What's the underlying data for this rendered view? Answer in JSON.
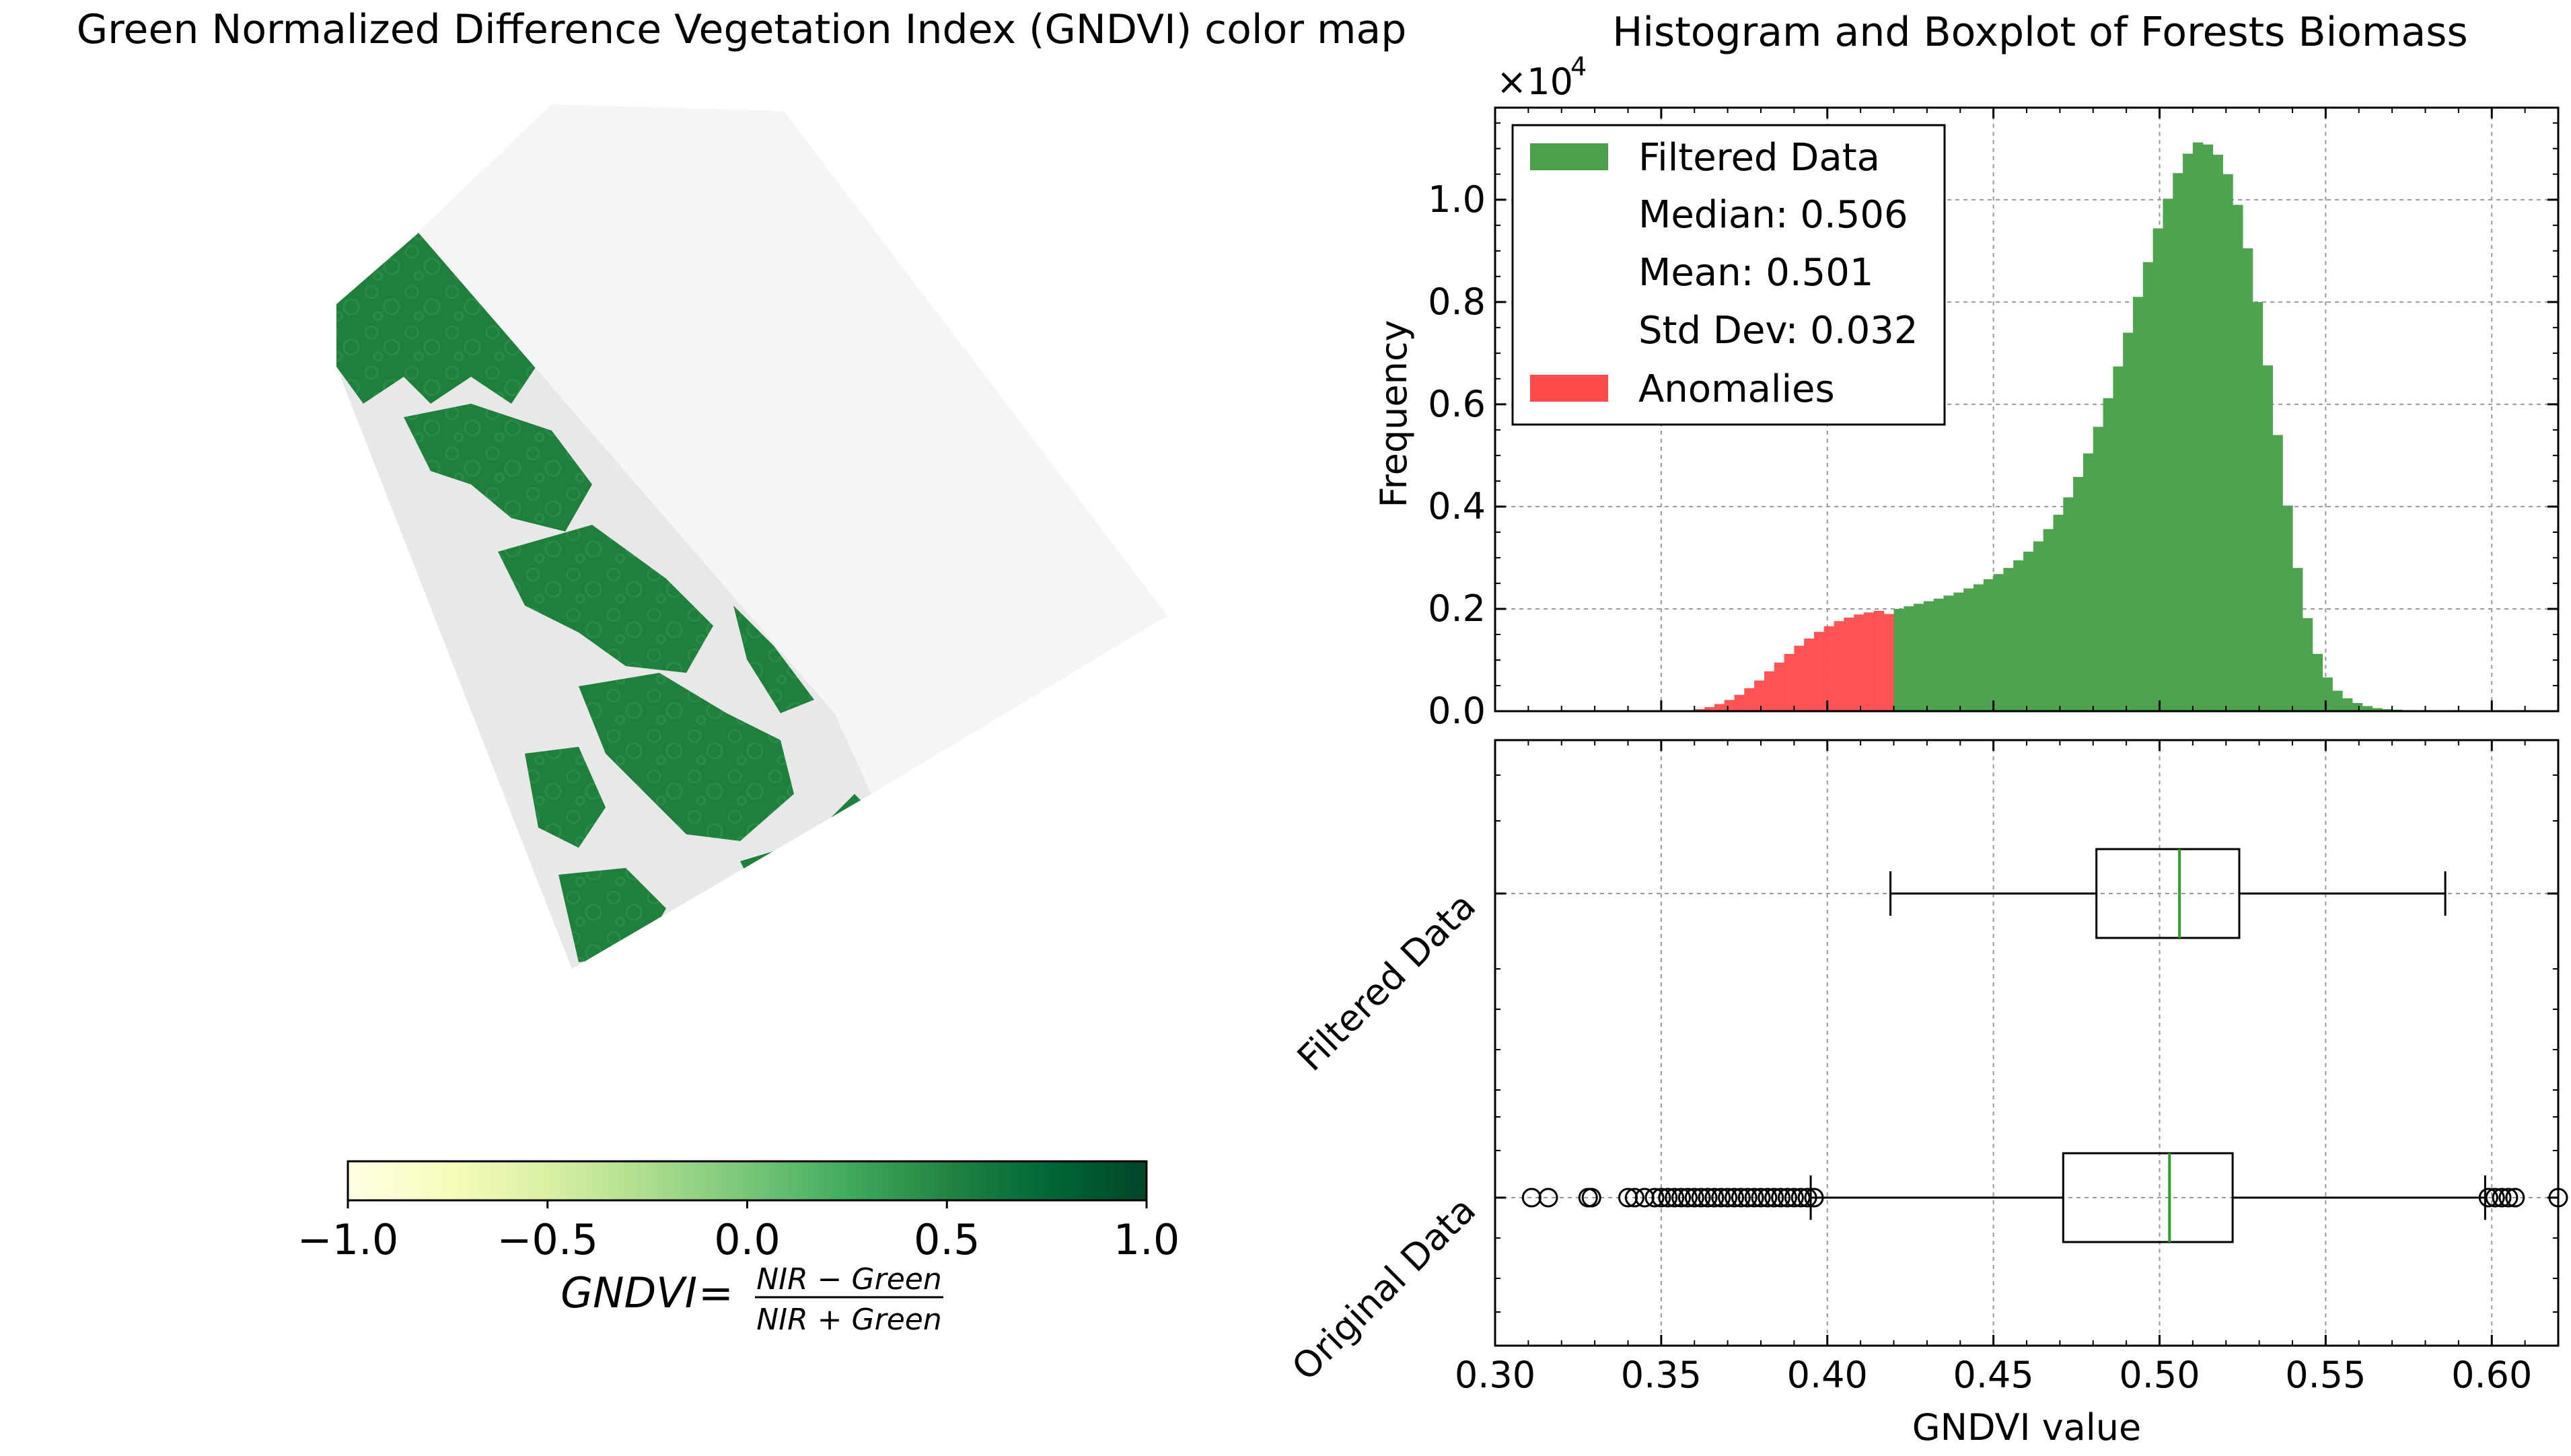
{
  "map": {
    "title": "Green Normalized Difference Vegetation Index (GNDVI) color map",
    "colorbar": {
      "ticks": [
        "−1.0",
        "−0.5",
        "0.0",
        "0.5",
        "1.0"
      ],
      "range": [
        -1.0,
        1.0
      ],
      "colors": [
        "#ffffe5",
        "#f7fcb9",
        "#d9f0a3",
        "#addd8e",
        "#78c679",
        "#41ab5d",
        "#238443",
        "#006837",
        "#004529"
      ]
    },
    "formula": {
      "lhs": "GNDVI",
      "equals": "=",
      "numerator": "NIR − Green",
      "denominator": "NIR + Green"
    },
    "colors": {
      "vegetation": "#1f7f3c",
      "bare": "#e8e8e8",
      "nodata": "#f5f5f5"
    }
  },
  "chart_data": [
    {
      "type": "bar",
      "title": "Histogram and Boxplot of Forests Biomass",
      "xlabel": "",
      "ylabel": "Frequency",
      "multiplier": "×10",
      "multiplier_exp": "4",
      "xlim": [
        0.3,
        0.62
      ],
      "ylim": [
        0,
        1.18
      ],
      "xticks": [
        "0.30",
        "0.35",
        "0.40",
        "0.45",
        "0.50",
        "0.55",
        "0.60"
      ],
      "yticks": [
        "0.0",
        "0.2",
        "0.4",
        "0.6",
        "0.8",
        "1.0"
      ],
      "grid": true,
      "legend_position": "top-left",
      "legend": {
        "filtered": "Filtered Data",
        "median": "Median: 0.506",
        "mean": "Mean: 0.501",
        "std": "Std Dev: 0.032",
        "anomalies": "Anomalies"
      },
      "colors": {
        "filtered": "#4aa14a",
        "anomalies": "#fe4b4b"
      },
      "series": [
        {
          "name": "Anomalies",
          "x": [
            0.36,
            0.363,
            0.366,
            0.369,
            0.372,
            0.375,
            0.378,
            0.381,
            0.384,
            0.387,
            0.39,
            0.393,
            0.396,
            0.399,
            0.402,
            0.405,
            0.408,
            0.411,
            0.414,
            0.417
          ],
          "values": [
            0.004,
            0.008,
            0.014,
            0.022,
            0.032,
            0.045,
            0.06,
            0.078,
            0.095,
            0.112,
            0.128,
            0.142,
            0.155,
            0.166,
            0.176,
            0.183,
            0.189,
            0.193,
            0.196,
            0.19
          ]
        },
        {
          "name": "Filtered Data",
          "x": [
            0.42,
            0.423,
            0.426,
            0.429,
            0.432,
            0.435,
            0.438,
            0.441,
            0.444,
            0.447,
            0.45,
            0.453,
            0.456,
            0.459,
            0.462,
            0.465,
            0.468,
            0.471,
            0.474,
            0.477,
            0.48,
            0.483,
            0.486,
            0.489,
            0.492,
            0.495,
            0.498,
            0.501,
            0.504,
            0.507,
            0.51,
            0.513,
            0.516,
            0.519,
            0.522,
            0.525,
            0.528,
            0.531,
            0.534,
            0.537,
            0.54,
            0.543,
            0.546,
            0.549,
            0.552,
            0.555,
            0.558,
            0.561,
            0.564,
            0.567,
            0.57,
            0.573,
            0.576,
            0.579,
            0.582,
            0.585
          ],
          "values": [
            0.2,
            0.205,
            0.21,
            0.215,
            0.22,
            0.226,
            0.232,
            0.24,
            0.248,
            0.258,
            0.268,
            0.28,
            0.295,
            0.312,
            0.332,
            0.356,
            0.384,
            0.418,
            0.458,
            0.504,
            0.556,
            0.612,
            0.674,
            0.74,
            0.81,
            0.878,
            0.944,
            1.002,
            1.052,
            1.09,
            1.112,
            1.108,
            1.088,
            1.05,
            0.99,
            0.905,
            0.8,
            0.676,
            0.54,
            0.402,
            0.28,
            0.182,
            0.112,
            0.066,
            0.04,
            0.025,
            0.016,
            0.01,
            0.006,
            0.004,
            0.003,
            0.002,
            0.001,
            0.001,
            0.0005,
            0.0003
          ]
        }
      ]
    },
    {
      "type": "box",
      "title": "",
      "xlabel": "GNDVI value",
      "ylabel": "",
      "xlim": [
        0.3,
        0.62
      ],
      "xticks": [
        "0.30",
        "0.35",
        "0.40",
        "0.45",
        "0.50",
        "0.55",
        "0.60"
      ],
      "categories": [
        "Original Data",
        "Filtered Data"
      ],
      "boxes": [
        {
          "name": "Original Data",
          "whisker_low": 0.395,
          "q1": 0.471,
          "median": 0.503,
          "q3": 0.522,
          "whisker_high": 0.598,
          "outliers": [
            0.311,
            0.316,
            0.328,
            0.329,
            0.34,
            0.342,
            0.345,
            0.348,
            0.35,
            0.352,
            0.354,
            0.356,
            0.358,
            0.36,
            0.362,
            0.364,
            0.366,
            0.368,
            0.37,
            0.372,
            0.374,
            0.376,
            0.378,
            0.38,
            0.382,
            0.384,
            0.386,
            0.388,
            0.39,
            0.392,
            0.394,
            0.396,
            0.599,
            0.601,
            0.603,
            0.605,
            0.607,
            0.62
          ]
        },
        {
          "name": "Filtered Data",
          "whisker_low": 0.419,
          "q1": 0.481,
          "median": 0.506,
          "q3": 0.524,
          "whisker_high": 0.586,
          "outliers": []
        }
      ],
      "colors": {
        "median": "#2ca02c"
      },
      "grid": true
    }
  ]
}
